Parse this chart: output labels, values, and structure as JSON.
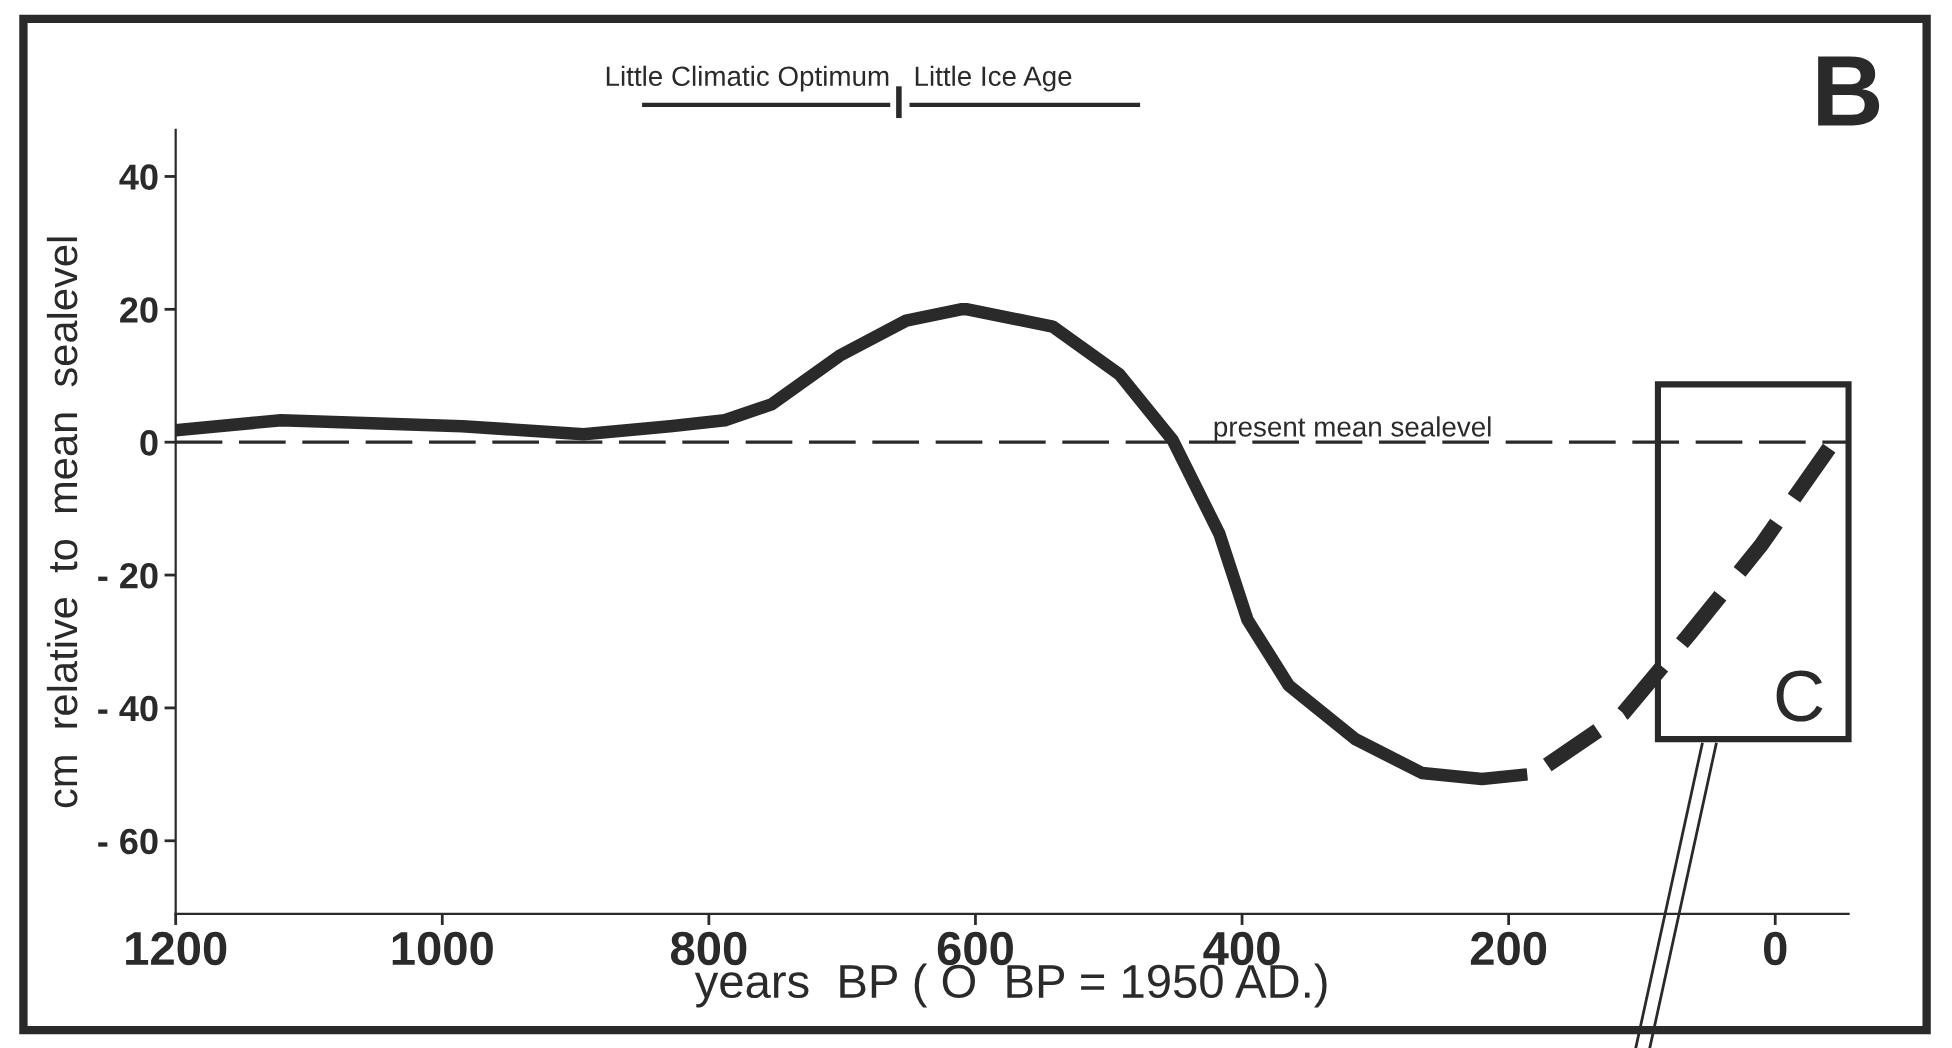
{
  "chart_data": {
    "type": "line",
    "xlabel": "years  BP ( O  BP = 1950 AD.)",
    "ylabel": "cm  relative  to  mean  sealevel",
    "xlim": [
      1200,
      -55
    ],
    "ylim": [
      -71,
      47
    ],
    "xticks": [
      1200,
      1000,
      800,
      600,
      400,
      200,
      0
    ],
    "yticks": [
      40,
      20,
      0,
      {
        "value": -20,
        "label": "- 20"
      },
      {
        "value": -40,
        "label": "- 40"
      },
      {
        "value": -60,
        "label": "- 60"
      }
    ],
    "marker": "none",
    "grid": false,
    "legend": false,
    "series": [
      {
        "color": "#2a2a2a",
        "line_style": "solid",
        "x": [
          1200,
          1121,
          985,
          894,
          829,
          788,
          753,
          702,
          652,
          611,
          606,
          542,
          492,
          452,
          417,
          396,
          365,
          315,
          265,
          220,
          186
        ],
        "values": [
          1.8,
          3.3,
          2.4,
          1.2,
          2.4,
          3.3,
          5.7,
          13,
          18.3,
          20,
          20,
          17.4,
          10.2,
          0.3,
          -13.8,
          -26.7,
          -36.6,
          -44.7,
          -49.8,
          -50.7,
          -50
        ]
      },
      {
        "color": "#2a2a2a",
        "line_style": "dashed",
        "x": [
          171,
          114,
          64,
          11,
          -52
        ],
        "values": [
          -48.6,
          -40.8,
          -28.8,
          -15.6,
          2.4
        ]
      }
    ],
    "ref_lines": [
      {
        "axis": "y",
        "value": 0,
        "label": "present mean sealevel",
        "line_style": "dashed",
        "color": "#2a2a2a"
      }
    ],
    "annotations": [
      "Little Climatic Optimum",
      "Little Ice Age",
      "B",
      "C"
    ]
  }
}
